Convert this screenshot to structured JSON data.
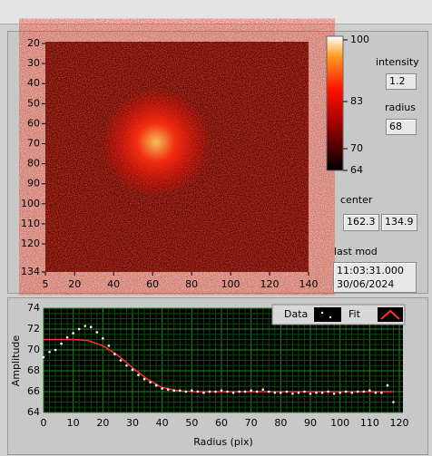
{
  "image_graph": {
    "xlim": [
      5,
      140
    ],
    "xticks": [
      5,
      20,
      40,
      60,
      80,
      100,
      120,
      140
    ],
    "ylim": [
      20,
      134
    ],
    "yticks": [
      20,
      30,
      40,
      50,
      60,
      70,
      80,
      90,
      100,
      110,
      120,
      134
    ],
    "clim": [
      64,
      100
    ],
    "cticks": [
      100,
      83,
      70,
      64
    ]
  },
  "indicators": {
    "intensity": {
      "label": "intensity",
      "value": "1.2"
    },
    "radius": {
      "label": "radius",
      "value": "68"
    },
    "center": {
      "label": "center",
      "x": "162.3",
      "y": "134.9"
    },
    "last_mod": {
      "label": "last mod",
      "time": "11:03:31.000",
      "date": "30/06/2024"
    }
  },
  "xy_graph": {
    "xlabel": "Radius (pix)",
    "ylabel": "Amplitude",
    "xlim": [
      0,
      120
    ],
    "xticks": [
      0,
      10,
      20,
      30,
      40,
      50,
      60,
      70,
      80,
      90,
      100,
      110,
      120
    ],
    "ylim": [
      64,
      74
    ],
    "yticks": [
      64,
      66,
      68,
      70,
      72,
      74
    ],
    "series": [
      {
        "name": "Data",
        "color": "#ffffff",
        "x": [
          0,
          2,
          4,
          6,
          8,
          10,
          12,
          14,
          16,
          18,
          20,
          22,
          24,
          26,
          28,
          30,
          32,
          34,
          36,
          38,
          40,
          42,
          44,
          46,
          48,
          50,
          52,
          54,
          56,
          58,
          60,
          62,
          64,
          66,
          68,
          70,
          72,
          74,
          76,
          78,
          80,
          82,
          84,
          86,
          88,
          90,
          92,
          94,
          96,
          98,
          100,
          102,
          104,
          106,
          108,
          110,
          112,
          114,
          116,
          118
        ],
        "values": [
          69.3,
          69.8,
          70.0,
          70.6,
          71.2,
          71.6,
          72.0,
          72.3,
          72.2,
          71.7,
          71.1,
          70.4,
          69.6,
          69.0,
          68.5,
          68.1,
          67.6,
          67.2,
          66.9,
          66.6,
          66.3,
          66.2,
          66.1,
          66.1,
          66.0,
          66.1,
          66.0,
          65.9,
          66.0,
          66.0,
          66.1,
          66.0,
          65.9,
          66.0,
          66.0,
          66.1,
          66.0,
          66.2,
          66.0,
          65.9,
          65.9,
          66.0,
          65.8,
          65.9,
          66.0,
          65.8,
          65.9,
          65.9,
          66.0,
          65.8,
          65.9,
          66.0,
          65.9,
          66.0,
          66.0,
          66.1,
          65.9,
          65.9,
          66.6,
          65.0
        ]
      },
      {
        "name": "Fit",
        "color": "#ff3030",
        "x": [
          0,
          5,
          10,
          15,
          20,
          25,
          30,
          35,
          40,
          45,
          50,
          60,
          80,
          100,
          118
        ],
        "values": [
          71,
          71,
          71,
          70.9,
          70.4,
          69.5,
          68.3,
          67.2,
          66.4,
          66.1,
          66.0,
          66.0,
          66.0,
          66.0,
          66.0
        ]
      }
    ]
  }
}
